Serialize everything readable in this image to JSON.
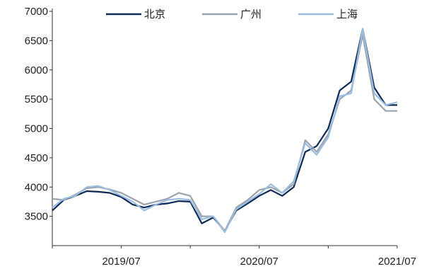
{
  "chart_data": {
    "type": "line",
    "title": "",
    "xlabel": "",
    "ylabel": "",
    "ylim": [
      3000,
      7000
    ],
    "y_ticks": [
      3500,
      4000,
      4500,
      5000,
      5500,
      6000,
      6500,
      7000
    ],
    "x_tick_labels": [
      "2019/07",
      "2020/07",
      "2021/07"
    ],
    "xlim": [
      "2019-01",
      "2021-07"
    ],
    "grid": false,
    "legend": {
      "position": "top-center"
    },
    "x": [
      "2019-01",
      "2019-02",
      "2019-03",
      "2019-04",
      "2019-05",
      "2019-06",
      "2019-07",
      "2019-08",
      "2019-09",
      "2019-10",
      "2019-11",
      "2019-12",
      "2020-01",
      "2020-02",
      "2020-03",
      "2020-04",
      "2020-05",
      "2020-06",
      "2020-07",
      "2020-08",
      "2020-09",
      "2020-10",
      "2020-11",
      "2020-12",
      "2021-01",
      "2021-02",
      "2021-03",
      "2021-04",
      "2021-05",
      "2021-06",
      "2021-07"
    ],
    "series": [
      {
        "name": "北京",
        "color": "#0b2a55",
        "values": [
          3600,
          3780,
          3850,
          3930,
          3920,
          3900,
          3830,
          3700,
          3650,
          3700,
          3720,
          3760,
          3750,
          3380,
          3480,
          3250,
          3600,
          3720,
          3850,
          3950,
          3850,
          4000,
          4600,
          4700,
          5000,
          5650,
          5800,
          6700,
          5700,
          5400,
          5400
        ]
      },
      {
        "name": "广州",
        "color": "#9aa3ae",
        "values": [
          3800,
          3780,
          3870,
          3980,
          4000,
          3960,
          3900,
          3800,
          3700,
          3750,
          3800,
          3900,
          3850,
          3500,
          3500,
          3250,
          3650,
          3780,
          3950,
          4000,
          3900,
          4050,
          4800,
          4600,
          4900,
          5500,
          5650,
          6600,
          5500,
          5300,
          5300
        ]
      },
      {
        "name": "上海",
        "color": "#9bbde0",
        "values": [
          3650,
          3800,
          3850,
          4000,
          4020,
          3950,
          3850,
          3750,
          3600,
          3700,
          3780,
          3800,
          3780,
          3450,
          3500,
          3230,
          3620,
          3750,
          3880,
          4050,
          3900,
          4100,
          4750,
          4550,
          4850,
          5550,
          5600,
          6700,
          5600,
          5400,
          5450
        ]
      }
    ]
  }
}
